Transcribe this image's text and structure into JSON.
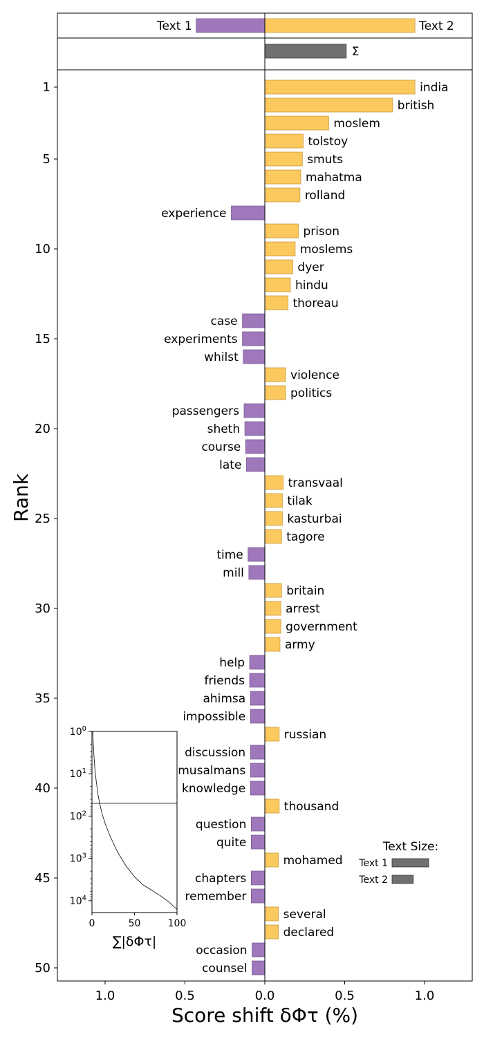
{
  "chart_data": {
    "type": "bar",
    "orientation": "horizontal",
    "xlabel": "Score shift δΦτ (%)",
    "ylabel": "Rank",
    "xlim": [
      -1.3,
      1.3
    ],
    "xticks": [
      -1.0,
      -0.5,
      0.0,
      0.5,
      1.0
    ],
    "xtick_labels": [
      "1.0",
      "0.5",
      "0.0",
      "0.5",
      "1.0"
    ],
    "yticks": [
      1,
      5,
      10,
      15,
      20,
      25,
      30,
      35,
      40,
      45,
      50
    ],
    "colors": {
      "text1": "#9f78bb",
      "text2": "#fcc95e",
      "sum": "#707070"
    },
    "header": {
      "text1_label": "Text 1",
      "text2_label": "Text 2",
      "text1_value": -0.43,
      "text2_value": 0.94,
      "sum_label": "Σ",
      "sum_value": 0.51
    },
    "words": [
      {
        "rank": 1,
        "word": "india",
        "value": 0.94
      },
      {
        "rank": 2,
        "word": "british",
        "value": 0.8
      },
      {
        "rank": 3,
        "word": "moslem",
        "value": 0.4
      },
      {
        "rank": 4,
        "word": "tolstoy",
        "value": 0.24
      },
      {
        "rank": 5,
        "word": "smuts",
        "value": 0.235
      },
      {
        "rank": 6,
        "word": "mahatma",
        "value": 0.225
      },
      {
        "rank": 7,
        "word": "rolland",
        "value": 0.22
      },
      {
        "rank": 8,
        "word": "experience",
        "value": -0.21
      },
      {
        "rank": 9,
        "word": "prison",
        "value": 0.21
      },
      {
        "rank": 10,
        "word": "moslems",
        "value": 0.19
      },
      {
        "rank": 11,
        "word": "dyer",
        "value": 0.175
      },
      {
        "rank": 12,
        "word": "hindu",
        "value": 0.16
      },
      {
        "rank": 13,
        "word": "thoreau",
        "value": 0.145
      },
      {
        "rank": 14,
        "word": "case",
        "value": -0.14
      },
      {
        "rank": 15,
        "word": "experiments",
        "value": -0.14
      },
      {
        "rank": 16,
        "word": "whilst",
        "value": -0.135
      },
      {
        "rank": 17,
        "word": "violence",
        "value": 0.13
      },
      {
        "rank": 18,
        "word": "politics",
        "value": 0.13
      },
      {
        "rank": 19,
        "word": "passengers",
        "value": -0.13
      },
      {
        "rank": 20,
        "word": "sheth",
        "value": -0.125
      },
      {
        "rank": 21,
        "word": "course",
        "value": -0.12
      },
      {
        "rank": 22,
        "word": "late",
        "value": -0.115
      },
      {
        "rank": 23,
        "word": "transvaal",
        "value": 0.115
      },
      {
        "rank": 24,
        "word": "tilak",
        "value": 0.11
      },
      {
        "rank": 25,
        "word": "kasturbai",
        "value": 0.11
      },
      {
        "rank": 26,
        "word": "tagore",
        "value": 0.105
      },
      {
        "rank": 27,
        "word": "time",
        "value": -0.105
      },
      {
        "rank": 28,
        "word": "mill",
        "value": -0.1
      },
      {
        "rank": 29,
        "word": "britain",
        "value": 0.105
      },
      {
        "rank": 30,
        "word": "arrest",
        "value": 0.1
      },
      {
        "rank": 31,
        "word": "government",
        "value": 0.1
      },
      {
        "rank": 32,
        "word": "army",
        "value": 0.095
      },
      {
        "rank": 33,
        "word": "help",
        "value": -0.095
      },
      {
        "rank": 34,
        "word": "friends",
        "value": -0.095
      },
      {
        "rank": 35,
        "word": "ahimsa",
        "value": -0.09
      },
      {
        "rank": 36,
        "word": "impossible",
        "value": -0.09
      },
      {
        "rank": 37,
        "word": "russian",
        "value": 0.09
      },
      {
        "rank": 38,
        "word": "discussion",
        "value": -0.09
      },
      {
        "rank": 39,
        "word": "musalmans",
        "value": -0.09
      },
      {
        "rank": 40,
        "word": "knowledge",
        "value": -0.09
      },
      {
        "rank": 41,
        "word": "thousand",
        "value": 0.09
      },
      {
        "rank": 42,
        "word": "question",
        "value": -0.085
      },
      {
        "rank": 43,
        "word": "quite",
        "value": -0.085
      },
      {
        "rank": 44,
        "word": "mohamed",
        "value": 0.085
      },
      {
        "rank": 45,
        "word": "chapters",
        "value": -0.085
      },
      {
        "rank": 46,
        "word": "remember",
        "value": -0.085
      },
      {
        "rank": 47,
        "word": "several",
        "value": 0.085
      },
      {
        "rank": 48,
        "word": "declared",
        "value": 0.085
      },
      {
        "rank": 49,
        "word": "occasion",
        "value": -0.08
      },
      {
        "rank": 50,
        "word": "counsel",
        "value": -0.08
      }
    ],
    "text_size_legend": {
      "title": "Text Size:",
      "entries": [
        {
          "label": "Text 1",
          "value": 1.0
        },
        {
          "label": "Text 2",
          "value": 0.58
        }
      ]
    },
    "inset": {
      "xlabel": "∑|δΦτ|",
      "xlim": [
        0,
        100
      ],
      "xticks": [
        0,
        50,
        100
      ],
      "xtick_labels": [
        "0",
        "50",
        "100"
      ],
      "ytick_labels": [
        "10^0",
        "10^1",
        "10^2",
        "10^3",
        "10^4"
      ],
      "y_scale": "log",
      "ylim": [
        1,
        19000
      ],
      "hline_rank": 50,
      "curve": [
        {
          "x": 0.8,
          "rank": 1
        },
        {
          "x": 1.6,
          "rank": 2
        },
        {
          "x": 2.4,
          "rank": 4
        },
        {
          "x": 3.5,
          "rank": 8
        },
        {
          "x": 5,
          "rank": 15
        },
        {
          "x": 7,
          "rank": 30
        },
        {
          "x": 9,
          "rank": 50
        },
        {
          "x": 12,
          "rank": 90
        },
        {
          "x": 16,
          "rank": 160
        },
        {
          "x": 22,
          "rank": 320
        },
        {
          "x": 30,
          "rank": 700
        },
        {
          "x": 40,
          "rank": 1500
        },
        {
          "x": 50,
          "rank": 2700
        },
        {
          "x": 60,
          "rank": 4200
        },
        {
          "x": 70,
          "rank": 5600
        },
        {
          "x": 80,
          "rank": 7500
        },
        {
          "x": 90,
          "rank": 10500
        },
        {
          "x": 100,
          "rank": 16000
        }
      ]
    }
  }
}
